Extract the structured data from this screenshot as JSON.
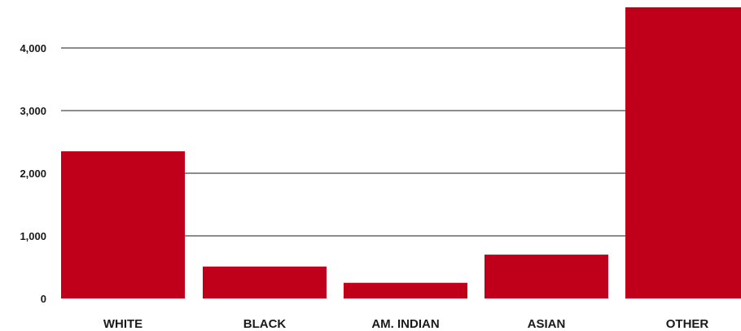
{
  "chart_data": {
    "type": "bar",
    "title": "",
    "xlabel": "",
    "ylabel": "",
    "categories": [
      "WHITE",
      "BLACK",
      "AM. INDIAN",
      "ASIAN",
      "OTHER"
    ],
    "values": [
      2350,
      510,
      250,
      700,
      4650
    ],
    "ylim": [
      0,
      4650
    ],
    "yticks": [
      0,
      1000,
      2000,
      3000,
      4000
    ],
    "ytick_labels": [
      "0",
      "1,000",
      "2,000",
      "3,000",
      "4,000"
    ],
    "grid": true,
    "legend": "none",
    "colors": {
      "bar": "#c0001a",
      "grid": "#1a1a1a",
      "text": "#1a1a1a"
    }
  }
}
